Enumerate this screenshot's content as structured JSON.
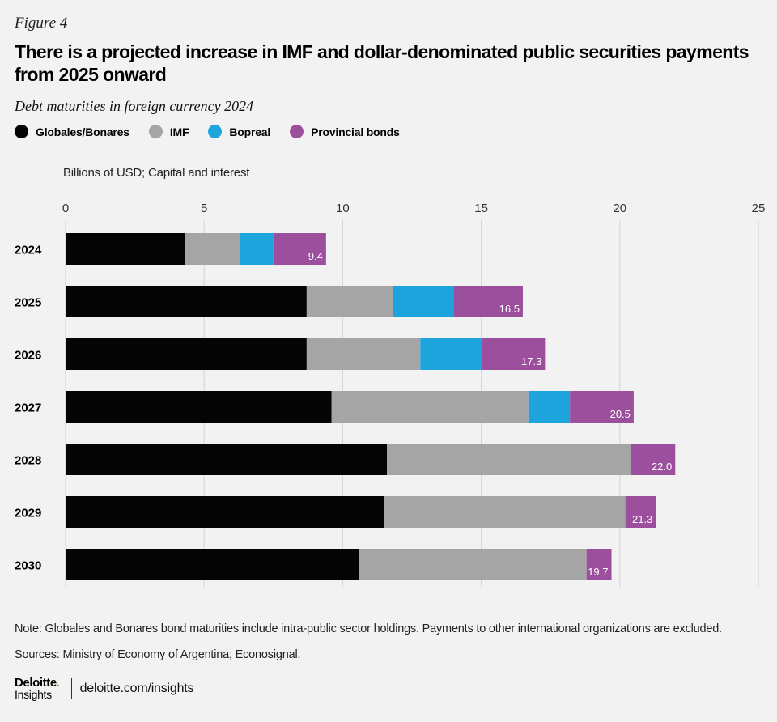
{
  "header": {
    "figure_label": "Figure 4",
    "title": "There is a projected increase in IMF and dollar-denominated public securities payments from 2025 onward",
    "subtitle": "Debt maturities in foreign currency 2024"
  },
  "legend": [
    {
      "name": "Globales/Bonares",
      "color": "#040404"
    },
    {
      "name": "IMF",
      "color": "#a5a5a5"
    },
    {
      "name": "Bopreal",
      "color": "#1da4dd"
    },
    {
      "name": "Provincial bonds",
      "color": "#9b4f9c"
    }
  ],
  "chart_data": {
    "type": "bar",
    "orientation": "horizontal",
    "stacked": true,
    "unit_label": "Billions of USD; Capital and interest",
    "categories": [
      "2024",
      "2025",
      "2026",
      "2027",
      "2028",
      "2029",
      "2030"
    ],
    "series": [
      {
        "name": "Globales/Bonares",
        "color": "#040404",
        "values": [
          4.3,
          8.7,
          8.7,
          9.6,
          11.6,
          11.5,
          10.6
        ]
      },
      {
        "name": "IMF",
        "color": "#a5a5a5",
        "values": [
          2.0,
          3.1,
          4.1,
          7.1,
          8.8,
          8.7,
          8.2
        ]
      },
      {
        "name": "Bopreal",
        "color": "#1da4dd",
        "values": [
          1.2,
          2.2,
          2.2,
          1.5,
          0,
          0,
          0
        ]
      },
      {
        "name": "Provincial bonds",
        "color": "#9b4f9c",
        "values": [
          1.9,
          2.5,
          2.3,
          2.3,
          1.6,
          1.1,
          0.9
        ]
      }
    ],
    "totals": [
      "9.4",
      "16.5",
      "17.3",
      "20.5",
      "22.0",
      "21.3",
      "19.7"
    ],
    "xlim": [
      0,
      25
    ],
    "xticks": [
      0,
      5,
      10,
      15,
      20,
      25
    ],
    "grid": true
  },
  "footer": {
    "note": "Note: Globales and Bonares bond maturities include intra-public sector holdings. Payments to other international organizations are excluded.",
    "source": "Sources: Ministry of Economy of Argentina; Econosignal.",
    "logo_top": "Deloitte",
    "logo_dot": ".",
    "logo_bottom": "Insights",
    "link": "deloitte.com/insights",
    "accent_color": "#86bc25"
  }
}
